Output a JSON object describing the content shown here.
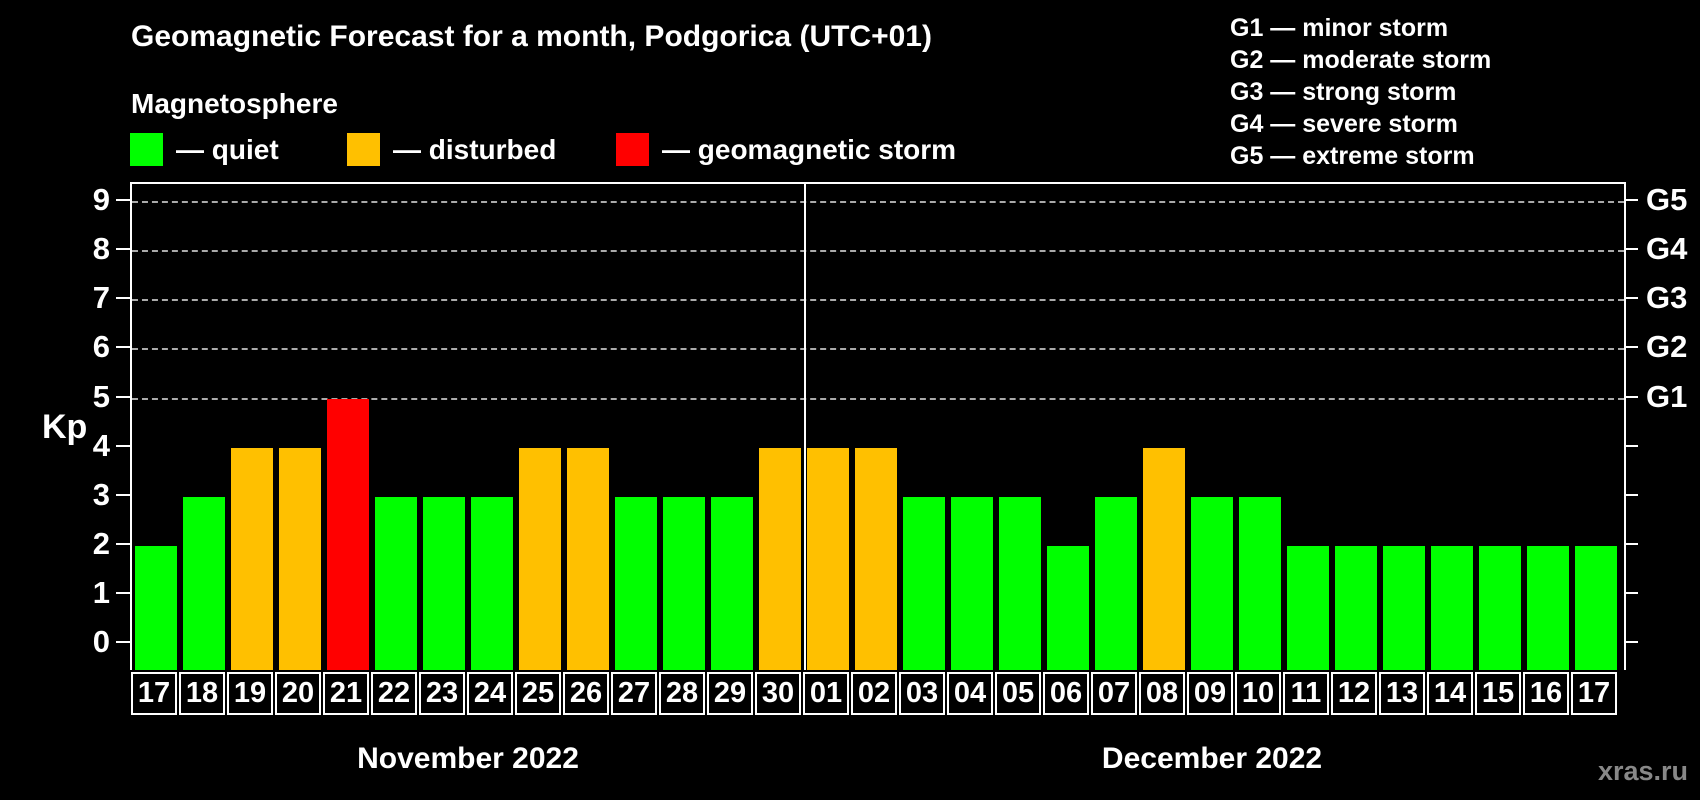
{
  "title": "Geomagnetic Forecast for a month, Podgorica (UTC+01)",
  "subtitle": "Magnetosphere",
  "legend": {
    "items": [
      {
        "name": "quiet",
        "label": "— quiet",
        "color": "#00ff00"
      },
      {
        "name": "disturbed",
        "label": "— disturbed",
        "color": "#ffc000"
      },
      {
        "name": "geomagnetic-storm",
        "label": "— geomagnetic storm",
        "color": "#ff0000"
      }
    ]
  },
  "g_legend": [
    "G1 — minor storm",
    "G2 — moderate storm",
    "G3 — strong storm",
    "G4 — severe storm",
    "G5 — extreme storm"
  ],
  "watermark": "xras.ru",
  "chart_data": {
    "type": "bar",
    "ylabel": "Kp",
    "ylim": [
      0,
      9
    ],
    "yticks": [
      0,
      1,
      2,
      3,
      4,
      5,
      6,
      7,
      8,
      9
    ],
    "gridlines_at": [
      5,
      6,
      7,
      8,
      9
    ],
    "grid": "dashed horizontal at storm levels only",
    "right_axis_labels": [
      {
        "kp": 5,
        "label": "G1"
      },
      {
        "kp": 6,
        "label": "G2"
      },
      {
        "kp": 7,
        "label": "G3"
      },
      {
        "kp": 8,
        "label": "G4"
      },
      {
        "kp": 9,
        "label": "G5"
      }
    ],
    "colors": {
      "quiet": "#00ff00",
      "disturbed": "#ffc000",
      "storm": "#ff0000"
    },
    "thresholds": {
      "disturbed": 4,
      "storm": 5
    },
    "months": [
      {
        "label": "November 2022",
        "days": [
          "17",
          "18",
          "19",
          "20",
          "21",
          "22",
          "23",
          "24",
          "25",
          "26",
          "27",
          "28",
          "29",
          "30"
        ],
        "values": [
          2,
          3,
          4,
          4,
          5,
          3,
          3,
          3,
          4,
          4,
          3,
          3,
          3,
          4
        ]
      },
      {
        "label": "December 2022",
        "days": [
          "01",
          "02",
          "03",
          "04",
          "05",
          "06",
          "07",
          "08",
          "09",
          "10",
          "11",
          "12",
          "13",
          "14",
          "15",
          "16",
          "17"
        ],
        "values": [
          4,
          4,
          3,
          3,
          3,
          2,
          3,
          4,
          3,
          3,
          2,
          2,
          2,
          2,
          2,
          2,
          2
        ]
      }
    ]
  }
}
